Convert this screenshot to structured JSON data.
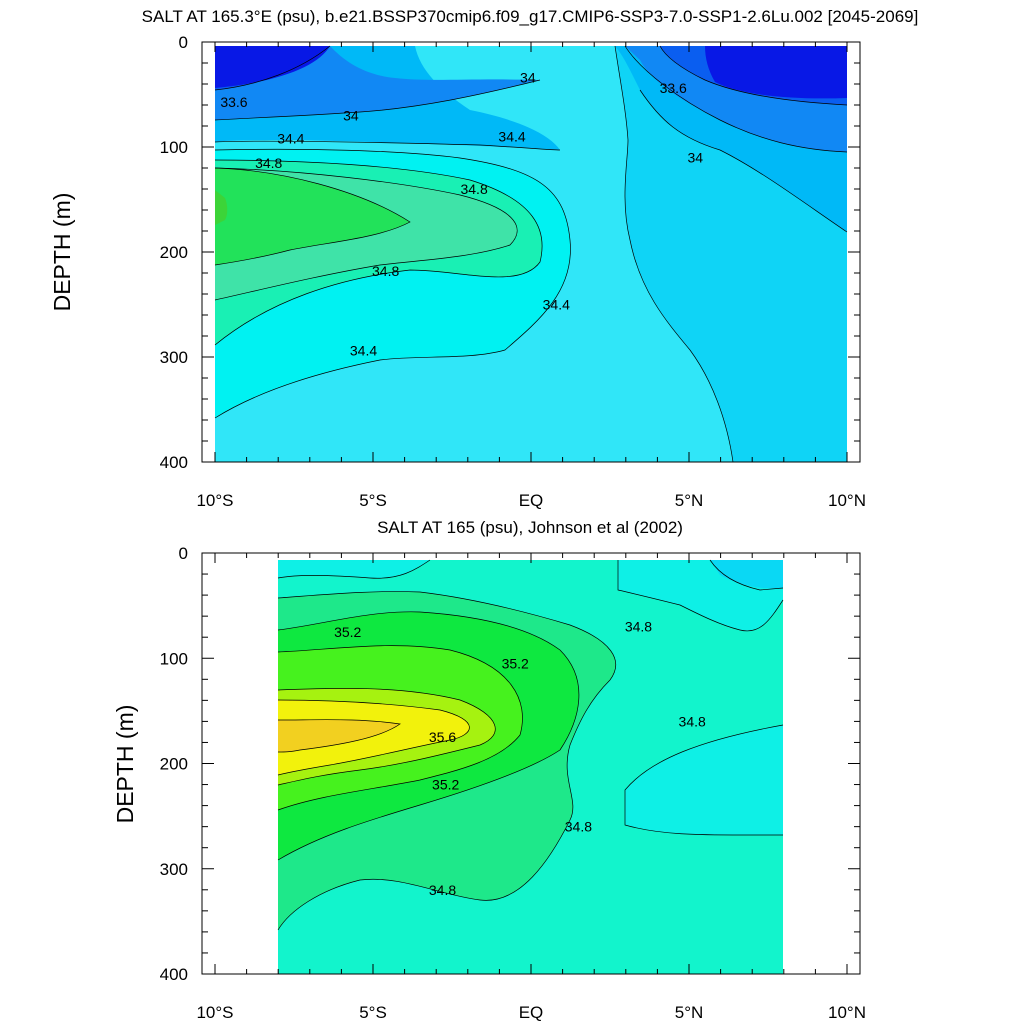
{
  "chart_data": [
    {
      "type": "contour",
      "title": "SALT AT 165.3°E (psu), b.e21.BSSP370cmip6.f09_g17.CMIP6-SSP3-7.0-SSP1-2.6Lu.002 [2045-2069]",
      "ylabel": "DEPTH (m)",
      "xlabel": "",
      "x_ticks": [
        "10°S",
        "5°S",
        "EQ",
        "5°N",
        "10°N"
      ],
      "x_range_deg": [
        -10,
        10
      ],
      "y_ticks": [
        "0",
        "100",
        "200",
        "300",
        "400"
      ],
      "y_range_m": [
        0,
        400
      ],
      "contour_interval": 0.2,
      "data_lat_range": [
        -10,
        10
      ],
      "data_depth_range": [
        5,
        400
      ],
      "contour_labels": [
        {
          "value": "33.6",
          "lat": -9.4,
          "depth": 57
        },
        {
          "value": "34",
          "lat": -5.7,
          "depth": 70
        },
        {
          "value": "34.4",
          "lat": -7.6,
          "depth": 92
        },
        {
          "value": "34.8",
          "lat": -8.3,
          "depth": 115
        },
        {
          "value": "34",
          "lat": -0.1,
          "depth": 34
        },
        {
          "value": "34.4",
          "lat": -0.6,
          "depth": 90
        },
        {
          "value": "34.8",
          "lat": -1.8,
          "depth": 140
        },
        {
          "value": "34.8",
          "lat": -4.6,
          "depth": 218
        },
        {
          "value": "34.4",
          "lat": 0.8,
          "depth": 250
        },
        {
          "value": "34.4",
          "lat": -5.3,
          "depth": 294
        },
        {
          "value": "33.6",
          "lat": 4.5,
          "depth": 44
        },
        {
          "value": "34",
          "lat": 5.2,
          "depth": 110
        }
      ]
    },
    {
      "type": "contour",
      "title": "SALT AT 165 (psu), Johnson et al (2002)",
      "ylabel": "DEPTH (m)",
      "xlabel": "",
      "x_ticks": [
        "10°S",
        "5°S",
        "EQ",
        "5°N",
        "10°N"
      ],
      "x_range_deg": [
        -10,
        10
      ],
      "y_ticks": [
        "0",
        "100",
        "200",
        "300",
        "400"
      ],
      "y_range_m": [
        0,
        400
      ],
      "contour_interval": 0.2,
      "data_lat_range": [
        -8,
        8
      ],
      "data_depth_range": [
        5,
        400
      ],
      "contour_labels": [
        {
          "value": "35.2",
          "lat": -5.8,
          "depth": 75
        },
        {
          "value": "35.2",
          "lat": -0.5,
          "depth": 105
        },
        {
          "value": "34.8",
          "lat": 3.4,
          "depth": 70
        },
        {
          "value": "35.6",
          "lat": -2.8,
          "depth": 175
        },
        {
          "value": "35.2",
          "lat": -2.7,
          "depth": 220
        },
        {
          "value": "34.8",
          "lat": 5.1,
          "depth": 160
        },
        {
          "value": "34.8",
          "lat": 1.5,
          "depth": 260
        },
        {
          "value": "34.8",
          "lat": -2.8,
          "depth": 320
        }
      ]
    }
  ]
}
